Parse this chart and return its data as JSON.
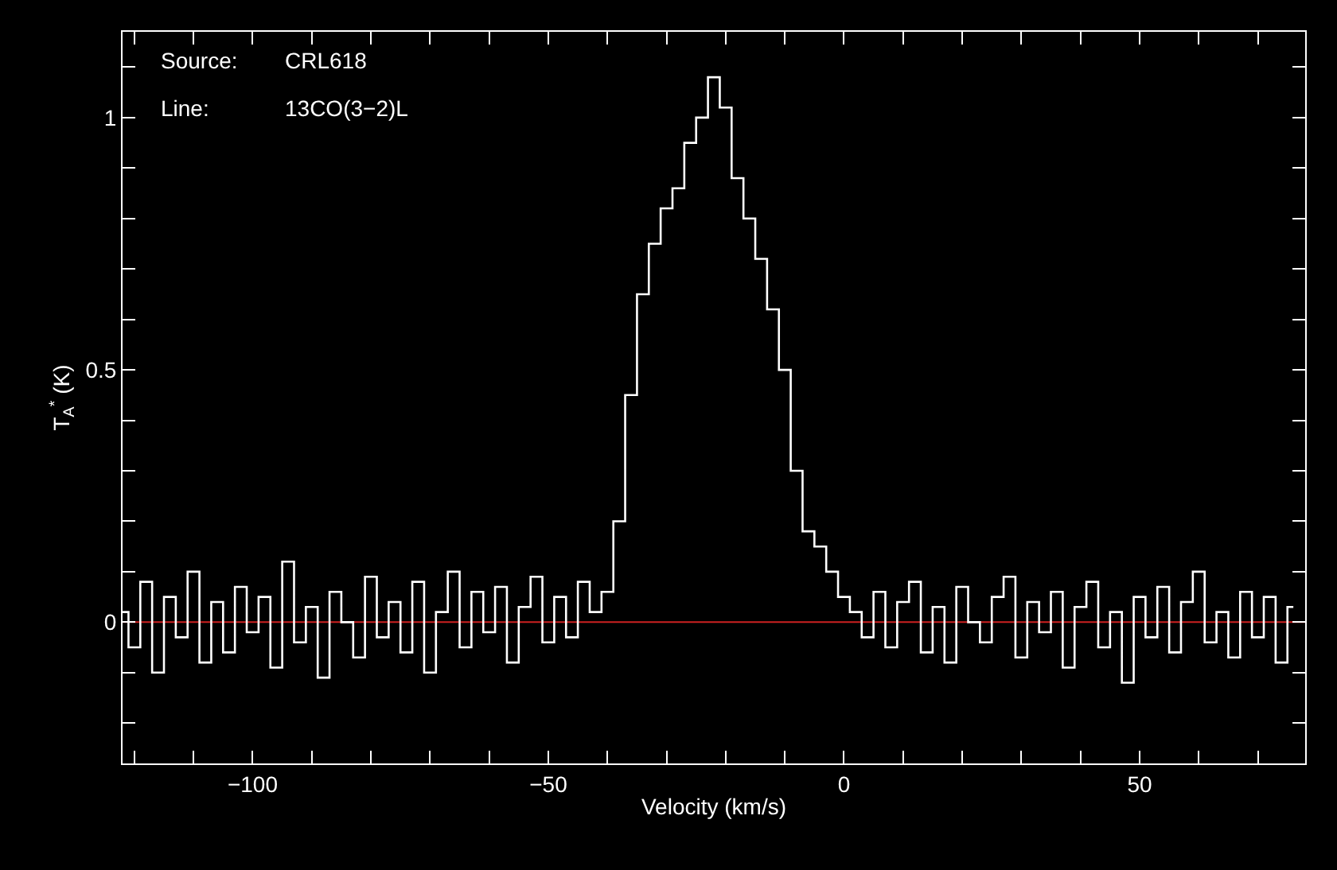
{
  "chart_data": {
    "type": "step",
    "xlabel": "Velocity (km/s)",
    "ylabel": "T$_{A}$$^{*}$ (K)",
    "annotations": [
      "Source:",
      "CRL618",
      "Line:",
      "13CO(3−2)L"
    ],
    "x": [
      -122,
      -120,
      -118,
      -116,
      -114,
      -112,
      -110,
      -108,
      -106,
      -104,
      -102,
      -100,
      -98,
      -96,
      -94,
      -92,
      -90,
      -88,
      -86,
      -84,
      -82,
      -80,
      -78,
      -76,
      -74,
      -72,
      -70,
      -68,
      -66,
      -64,
      -62,
      -60,
      -58,
      -56,
      -54,
      -52,
      -50,
      -48,
      -46,
      -44,
      -42,
      -40,
      -38,
      -36,
      -34,
      -32,
      -30,
      -28,
      -26,
      -24,
      -22,
      -20,
      -18,
      -16,
      -14,
      -12,
      -10,
      -8,
      -6,
      -4,
      -2,
      0,
      2,
      4,
      6,
      8,
      10,
      12,
      14,
      16,
      18,
      20,
      22,
      24,
      26,
      28,
      30,
      32,
      34,
      36,
      38,
      40,
      42,
      44,
      46,
      48,
      50,
      52,
      54,
      56,
      58,
      60,
      62,
      64,
      66,
      68,
      70,
      72,
      74,
      76
    ],
    "series": [
      {
        "color": "#ffffff",
        "values": [
          0.02,
          -0.05,
          0.08,
          -0.1,
          0.05,
          -0.03,
          0.1,
          -0.08,
          0.04,
          -0.06,
          0.07,
          -0.02,
          0.05,
          -0.09,
          0.12,
          -0.04,
          0.03,
          -0.11,
          0.06,
          0.0,
          -0.07,
          0.09,
          -0.03,
          0.04,
          -0.06,
          0.08,
          -0.1,
          0.02,
          0.1,
          -0.05,
          0.06,
          -0.02,
          0.07,
          -0.08,
          0.03,
          0.09,
          -0.04,
          0.05,
          -0.03,
          0.08,
          0.02,
          0.06,
          0.2,
          0.45,
          0.65,
          0.75,
          0.82,
          0.86,
          0.95,
          1.0,
          1.08,
          1.02,
          0.88,
          0.8,
          0.72,
          0.62,
          0.5,
          0.3,
          0.18,
          0.15,
          0.1,
          0.05,
          0.02,
          -0.03,
          0.06,
          -0.05,
          0.04,
          0.08,
          -0.06,
          0.03,
          -0.08,
          0.07,
          0.0,
          -0.04,
          0.05,
          0.09,
          -0.07,
          0.04,
          -0.02,
          0.06,
          -0.09,
          0.03,
          0.08,
          -0.05,
          0.02,
          -0.12,
          0.05,
          -0.03,
          0.07,
          -0.06,
          0.04,
          0.1,
          -0.04,
          0.02,
          -0.07,
          0.06,
          -0.03,
          0.05,
          -0.08,
          0.03
        ]
      }
    ],
    "ref_lines": [
      {
        "axis": "y",
        "value": 0,
        "color": "#cc2020"
      }
    ],
    "xlim": [
      -122,
      78
    ],
    "ylim": [
      -0.28,
      1.17
    ],
    "xticks": [
      {
        "value": -120,
        "label": null
      },
      {
        "value": -110,
        "label": null
      },
      {
        "value": -100,
        "label": "−100"
      },
      {
        "value": -90,
        "label": null
      },
      {
        "value": -80,
        "label": null
      },
      {
        "value": -70,
        "label": null
      },
      {
        "value": -60,
        "label": null
      },
      {
        "value": -50,
        "label": "−50"
      },
      {
        "value": -40,
        "label": null
      },
      {
        "value": -30,
        "label": null
      },
      {
        "value": -20,
        "label": null
      },
      {
        "value": -10,
        "label": null
      },
      0,
      {
        "value": 10,
        "label": null
      },
      {
        "value": 20,
        "label": null
      },
      {
        "value": 30,
        "label": null
      },
      {
        "value": 40,
        "label": null
      },
      50,
      {
        "value": 60,
        "label": null
      },
      {
        "value": 70,
        "label": null
      }
    ],
    "yticks": [
      {
        "value": -0.2,
        "label": null
      },
      {
        "value": -0.1,
        "label": null
      },
      0,
      {
        "value": 0.1,
        "label": null
      },
      {
        "value": 0.2,
        "label": null
      },
      {
        "value": 0.3,
        "label": null
      },
      {
        "value": 0.4,
        "label": null
      },
      0.5,
      {
        "value": 0.6,
        "label": null
      },
      {
        "value": 0.7,
        "label": null
      },
      {
        "value": 0.8,
        "label": null
      },
      {
        "value": 0.9,
        "label": null
      },
      1,
      {
        "value": 1.1,
        "label": null
      }
    ],
    "grid": false,
    "marker": "none",
    "line_style": "solid"
  }
}
